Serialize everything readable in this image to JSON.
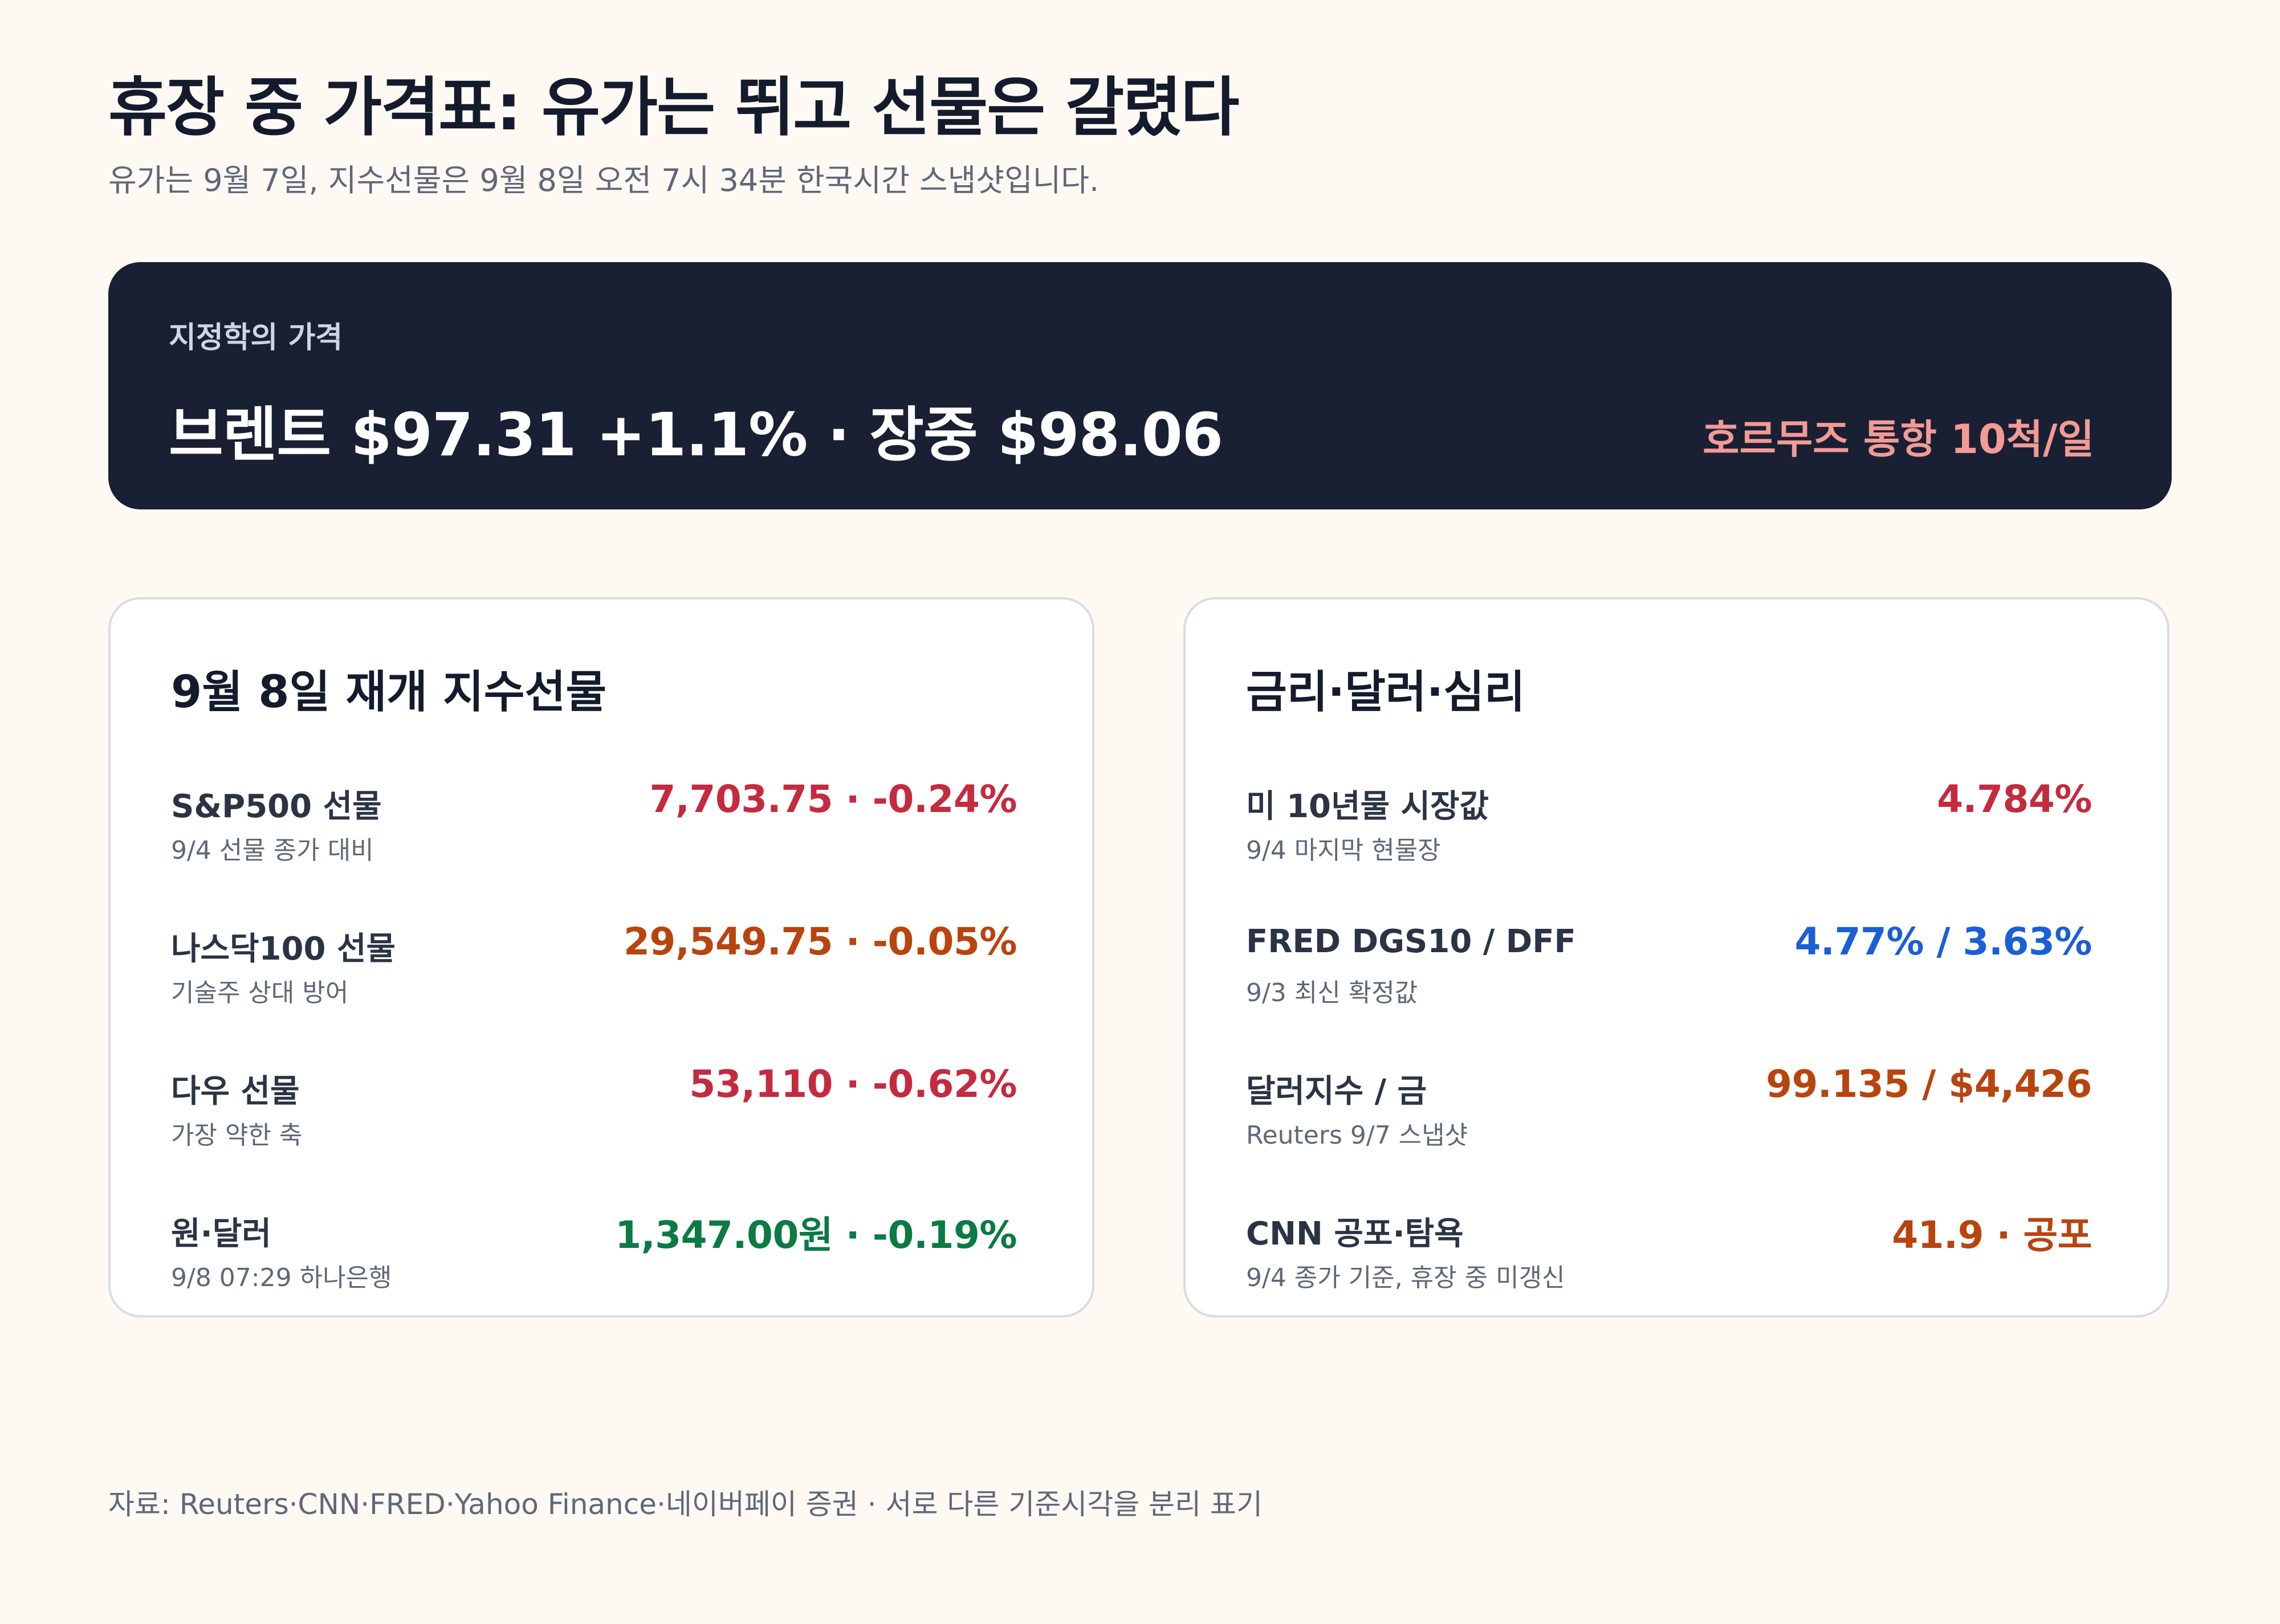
{
  "header": {
    "title": "휴장 중 가격표: 유가는 뛰고 선물은 갈렸다",
    "subtitle": "유가는 9월 7일, 지수선물은 9월 8일 오전 7시 34분 한국시간 스냅샷입니다."
  },
  "hero": {
    "kicker": "지정학의 가격",
    "main": "브렌트 $97.31 +1.1% · 장중 $98.06",
    "side": "호르무즈 통항 10척/일",
    "side_color": "#f39a94"
  },
  "futures_card": {
    "title": "9월 8일 재개 지수선물",
    "rows": [
      {
        "label": "S&P500 선물",
        "sub": "9/4 선물 종가 대비",
        "value": "7,703.75 · -0.24%",
        "color": "#c42b3f"
      },
      {
        "label": "나스닥100 선물",
        "sub": "기술주 상대 방어",
        "value": "29,549.75 · -0.05%",
        "color": "#b9440e"
      },
      {
        "label": "다우 선물",
        "sub": "가장 약한 축",
        "value": "53,110 · -0.62%",
        "color": "#c42b3f"
      },
      {
        "label": "원·달러",
        "sub": "9/8 07:29 하나은행",
        "value": "1,347.00원 · -0.19%",
        "color": "#0b7a43"
      }
    ]
  },
  "rates_card": {
    "title": "금리·달러·심리",
    "rows": [
      {
        "label": "미 10년물 시장값",
        "sub": "9/4 마지막 현물장",
        "value": "4.784%",
        "color": "#c42b3f"
      },
      {
        "label": "FRED DGS10 / DFF",
        "sub": "9/3 최신 확정값",
        "value": "4.77% / 3.63%",
        "color": "#1b5fd6"
      },
      {
        "label": "달러지수 / 금",
        "sub": "Reuters 9/7 스냅샷",
        "value": "99.135 / $4,426",
        "color": "#b9440e"
      },
      {
        "label": "CNN 공포·탐욕",
        "sub": "9/4 종가 기준, 휴장 중 미갱신",
        "value": "41.9 · 공포",
        "color": "#b9440e"
      }
    ]
  },
  "footer": {
    "source": "자료: Reuters·CNN·FRED·Yahoo Finance·네이버페이 증권 · 서로 다른 기준시각을 분리 표기"
  }
}
